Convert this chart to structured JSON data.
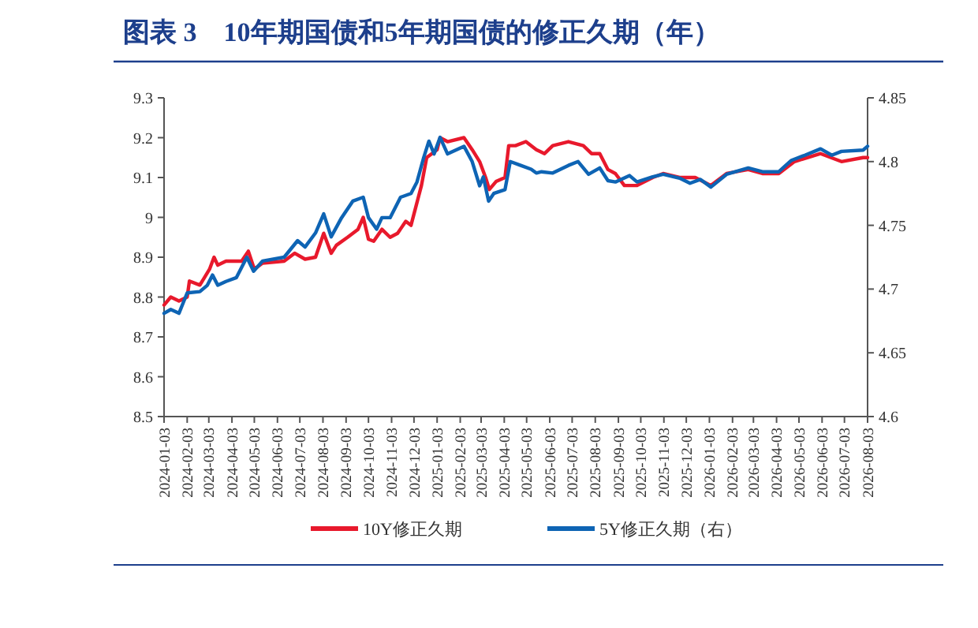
{
  "chart_data": {
    "type": "line",
    "title": "图表 3　10年期国债和5年期国债的修正久期（年）",
    "xlim": [
      "2024-01-03",
      "2026-08-03"
    ],
    "xticks": [
      "2024-01-03",
      "2024-02-03",
      "2024-03-03",
      "2024-04-03",
      "2024-05-03",
      "2024-06-03",
      "2024-07-03",
      "2024-08-03",
      "2024-09-03",
      "2024-10-03",
      "2024-11-03",
      "2024-12-03",
      "2025-01-03",
      "2025-02-03",
      "2025-03-03",
      "2025-04-03",
      "2025-05-03",
      "2025-06-03",
      "2025-07-03",
      "2025-08-03",
      "2025-09-03",
      "2025-10-03",
      "2025-11-03",
      "2025-12-03",
      "2026-01-03",
      "2026-02-03",
      "2026-03-03",
      "2026-04-03",
      "2026-05-03",
      "2026-06-03",
      "2026-07-03",
      "2026-08-03"
    ],
    "ylim": [
      8.5,
      9.3
    ],
    "yticks": [
      8.5,
      8.6,
      8.7,
      8.8,
      8.9,
      {
        "value": 9,
        "label": "9"
      },
      9.1,
      9.2,
      9.3
    ],
    "y2lim": [
      4.6,
      4.85
    ],
    "y2ticks": [
      4.6,
      4.65,
      4.7,
      4.75,
      4.8,
      4.85
    ],
    "legend": "bottom",
    "grid": false,
    "marker": "none",
    "line_style": "solid",
    "series": [
      {
        "name": "10Y修正久期",
        "color": "#e8192c",
        "x": [
          "2024-01-03",
          "2024-01-12",
          "2024-01-23",
          "2024-02-03",
          "2024-02-06",
          "2024-02-20",
          "2024-03-04",
          "2024-03-10",
          "2024-03-15",
          "2024-03-26",
          "2024-04-16",
          "2024-04-25",
          "2024-05-03",
          "2024-05-14",
          "2024-06-12",
          "2024-06-26",
          "2024-07-10",
          "2024-07-24",
          "2024-08-04",
          "2024-08-14",
          "2024-08-21",
          "2024-09-05",
          "2024-09-19",
          "2024-09-26",
          "2024-10-03",
          "2024-10-10",
          "2024-10-21",
          "2024-11-01",
          "2024-11-11",
          "2024-11-22",
          "2024-11-29",
          "2024-12-06",
          "2024-12-13",
          "2024-12-20",
          "2025-01-03",
          "2025-01-07",
          "2025-01-17",
          "2025-02-08",
          "2025-02-19",
          "2025-03-01",
          "2025-03-09",
          "2025-03-14",
          "2025-03-23",
          "2025-04-04",
          "2025-04-09",
          "2025-04-18",
          "2025-05-02",
          "2025-05-16",
          "2025-05-27",
          "2025-06-07",
          "2025-06-28",
          "2025-07-18",
          "2025-07-29",
          "2025-08-09",
          "2025-08-20",
          "2025-08-30",
          "2025-09-11",
          "2025-09-28",
          "2025-10-19",
          "2025-11-02",
          "2025-11-24",
          "2025-12-15",
          "2026-01-05",
          "2026-01-26",
          "2026-02-24",
          "2026-03-15",
          "2026-04-06",
          "2026-04-27",
          "2026-06-01",
          "2026-06-29",
          "2026-07-28",
          "2026-08-03"
        ],
        "values": [
          8.78,
          8.8,
          8.79,
          8.8,
          8.84,
          8.83,
          8.87,
          8.9,
          8.88,
          8.89,
          8.89,
          8.915,
          8.87,
          8.885,
          8.89,
          8.91,
          8.895,
          8.9,
          8.96,
          8.91,
          8.93,
          8.95,
          8.97,
          9.0,
          8.945,
          8.94,
          8.97,
          8.95,
          8.96,
          8.99,
          8.98,
          9.03,
          9.08,
          9.15,
          9.17,
          9.2,
          9.19,
          9.2,
          9.17,
          9.14,
          9.1,
          9.07,
          9.09,
          9.1,
          9.18,
          9.18,
          9.19,
          9.17,
          9.16,
          9.18,
          9.19,
          9.18,
          9.16,
          9.16,
          9.12,
          9.11,
          9.08,
          9.08,
          9.1,
          9.11,
          9.1,
          9.1,
          9.08,
          9.11,
          9.12,
          9.11,
          9.11,
          9.14,
          9.16,
          9.14,
          9.15,
          9.15
        ]
      },
      {
        "name": "5Y修正久期（右）",
        "color": "#0e64b4",
        "axis": "y2",
        "x": [
          "2024-01-03",
          "2024-01-12",
          "2024-01-23",
          "2024-02-03",
          "2024-02-20",
          "2024-03-01",
          "2024-03-08",
          "2024-03-15",
          "2024-03-26",
          "2024-04-09",
          "2024-04-23",
          "2024-05-02",
          "2024-05-14",
          "2024-06-12",
          "2024-06-30",
          "2024-07-10",
          "2024-07-24",
          "2024-08-04",
          "2024-08-14",
          "2024-08-28",
          "2024-09-12",
          "2024-09-26",
          "2024-10-03",
          "2024-10-14",
          "2024-10-21",
          "2024-11-01",
          "2024-11-15",
          "2024-11-29",
          "2024-12-07",
          "2024-12-16",
          "2024-12-23",
          "2024-12-30",
          "2025-01-07",
          "2025-01-17",
          "2025-02-08",
          "2025-02-19",
          "2025-03-01",
          "2025-03-06",
          "2025-03-13",
          "2025-03-20",
          "2025-04-04",
          "2025-04-11",
          "2025-04-25",
          "2025-05-09",
          "2025-05-16",
          "2025-05-23",
          "2025-06-07",
          "2025-06-28",
          "2025-07-11",
          "2025-07-25",
          "2025-08-09",
          "2025-08-20",
          "2025-08-30",
          "2025-09-18",
          "2025-09-28",
          "2025-10-19",
          "2025-11-02",
          "2025-11-24",
          "2025-12-08",
          "2025-12-22",
          "2026-01-05",
          "2026-01-26",
          "2026-02-24",
          "2026-03-15",
          "2026-04-06",
          "2026-04-23",
          "2026-05-11",
          "2026-06-01",
          "2026-06-16",
          "2026-06-29",
          "2026-07-28",
          "2026-08-03"
        ],
        "values": [
          4.681,
          4.684,
          4.681,
          4.697,
          4.698,
          4.703,
          4.711,
          4.703,
          4.706,
          4.709,
          4.725,
          4.714,
          4.722,
          4.725,
          4.738,
          4.733,
          4.744,
          4.759,
          4.741,
          4.756,
          4.769,
          4.772,
          4.756,
          4.747,
          4.756,
          4.756,
          4.772,
          4.775,
          4.784,
          4.803,
          4.816,
          4.806,
          4.819,
          4.806,
          4.812,
          4.8,
          4.781,
          4.788,
          4.769,
          4.775,
          4.778,
          4.8,
          4.797,
          4.794,
          4.791,
          4.792,
          4.791,
          4.797,
          4.8,
          4.79,
          4.795,
          4.785,
          4.784,
          4.789,
          4.784,
          4.788,
          4.79,
          4.787,
          4.783,
          4.786,
          4.78,
          4.79,
          4.795,
          4.792,
          4.792,
          4.801,
          4.805,
          4.81,
          4.805,
          4.808,
          4.809,
          4.812
        ]
      }
    ]
  }
}
